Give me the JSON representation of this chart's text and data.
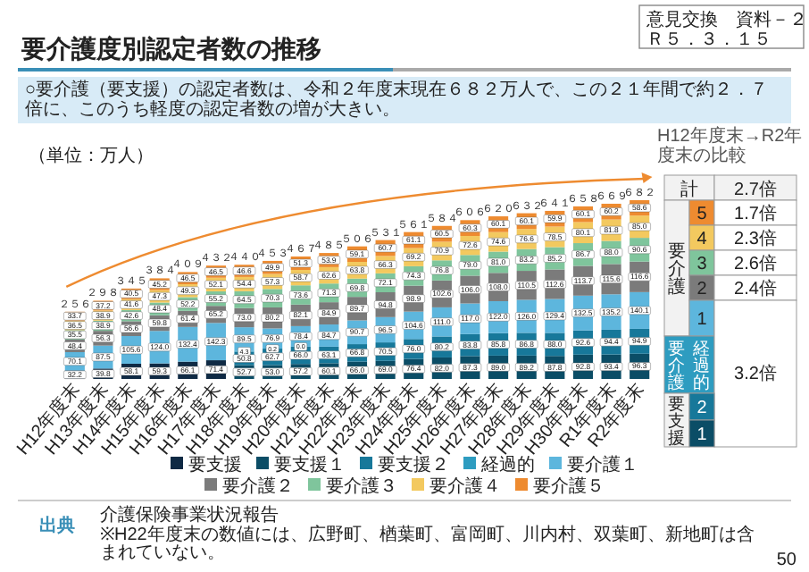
{
  "chart_data": {
    "type": "bar",
    "stacked": true,
    "data_labels": true,
    "legend": "bottom",
    "title": "要介護度別認定者数の推移",
    "subtitle": "○要介護（要支援）の認定者数は、令和２年度末現在６８２万人で、この２１年間で約２．７倍に、このうち軽度の認定者数の増が大きい。",
    "ylabel": "（単位：万人）",
    "categories": [
      "H12年度末",
      "H13年度末",
      "H14年度末",
      "H15年度末",
      "H16年度末",
      "H17年度末",
      "H18年度末",
      "H19年度末",
      "H20年度末",
      "H21年度末",
      "H22年度末",
      "H23年度末",
      "H24年度末",
      "H25年度末",
      "H26年度末",
      "H27年度末",
      "H28年度末",
      "H29年度末",
      "H30年度末",
      "R1年度末",
      "R2年度末"
    ],
    "series": [
      {
        "name": "要支援",
        "color": "#0f2a44",
        "values": [
          32.2,
          39.8,
          58.1,
          59.3,
          66.1,
          71.4,
          null,
          null,
          null,
          null,
          null,
          null,
          null,
          null,
          null,
          null,
          null,
          null,
          null,
          null,
          null
        ],
        "value_labels": [
          "32.2",
          "39.8",
          "58.1",
          "59.3",
          "66.1",
          "71.4",
          null,
          null,
          null,
          null,
          null,
          null,
          null,
          null,
          null,
          null,
          null,
          null,
          null,
          null,
          null
        ]
      },
      {
        "name": "要支援１",
        "color": "#0b4d66",
        "values": [
          null,
          null,
          null,
          null,
          null,
          null,
          52.7,
          53.0,
          57.2,
          60.1,
          66.0,
          69.0,
          76.4,
          82.0,
          87.3,
          89.0,
          89.2,
          87.8,
          92.8,
          93.4,
          96.3
        ],
        "value_labels": [
          null,
          null,
          null,
          null,
          null,
          null,
          "52.7",
          "53.0",
          "57.2",
          "60.1",
          "66.0",
          "69.0",
          "76.4",
          "82.0",
          "87.3",
          "89.0",
          "89.2",
          "87.8",
          "92.8",
          "93.4",
          "96.3"
        ]
      },
      {
        "name": "要支援２",
        "color": "#17789a",
        "values": [
          null,
          null,
          null,
          null,
          null,
          null,
          50.8,
          62.7,
          66.0,
          63.1,
          66.8,
          70.5,
          76.0,
          80.2,
          83.8,
          85.8,
          86.8,
          88.0,
          92.6,
          94.4,
          94.9
        ],
        "value_labels": [
          null,
          null,
          null,
          null,
          null,
          null,
          "50.8",
          "62.7",
          "66.0",
          "63.1",
          "66.8",
          "70.5",
          "76.0",
          "80.2",
          "83.8",
          "85.8",
          "86.8",
          "88.0",
          "92.6",
          "94.4",
          "94.9"
        ]
      },
      {
        "name": "経過的",
        "color": "#2e9cc0",
        "values": [
          null,
          null,
          null,
          null,
          null,
          null,
          4.3,
          0.2,
          0.0,
          null,
          null,
          null,
          null,
          null,
          null,
          null,
          null,
          null,
          null,
          null,
          null
        ],
        "value_labels": [
          null,
          null,
          null,
          null,
          null,
          null,
          "4.3",
          "0.2",
          "0.0",
          null,
          null,
          null,
          null,
          null,
          null,
          null,
          null,
          null,
          null,
          null,
          null
        ]
      },
      {
        "name": "要介護１",
        "color": "#5db6dd",
        "values": [
          70.1,
          87.5,
          105.6,
          124.0,
          132.4,
          142.3,
          89.5,
          76.9,
          78.4,
          84.7,
          90.7,
          96.5,
          104.6,
          111.0,
          117.0,
          122.0,
          126.0,
          129.4,
          132.5,
          135.2,
          140.1
        ],
        "value_labels": [
          "70.1",
          "87.5",
          "105.6",
          "124.0",
          "132.4",
          "142.3",
          "89.5",
          "76.9",
          "78.4",
          "84.7",
          "90.7",
          "96.5",
          "104.6",
          "111.0",
          "117.0",
          "122.0",
          "126.0",
          "129.4",
          "132.5",
          "135.2",
          "140.1"
        ]
      },
      {
        "name": "要介護２",
        "color": "#7b7b7b",
        "values": [
          48.4,
          56.3,
          56.6,
          59.8,
          61.4,
          65.2,
          73.0,
          80.2,
          82.1,
          84.9,
          89.7,
          94.8,
          98.9,
          102.6,
          106.0,
          108.0,
          110.5,
          112.6,
          113.7,
          115.6,
          116.6
        ],
        "value_labels": [
          "48.4",
          "56.3",
          "56.6",
          "59.8",
          "61.4",
          "65.2",
          "73.0",
          "80.2",
          "82.1",
          "84.9",
          "89.7",
          "94.8",
          "98.9",
          "102.6",
          "106.0",
          "108.0",
          "110.5",
          "112.6",
          "113.7",
          "115.6",
          "116.6"
        ]
      },
      {
        "name": "要介護３",
        "color": "#7fc59c",
        "values": [
          35.5,
          38.9,
          42.6,
          48.4,
          52.2,
          55.2,
          64.5,
          70.3,
          73.6,
          71.3,
          69.8,
          72.1,
          74.3,
          76.8,
          79.0,
          81.0,
          83.2,
          85.2,
          86.7,
          88.0,
          90.6
        ],
        "value_labels": [
          "35.5",
          "38.9",
          "42.6",
          "48.4",
          "52.2",
          "55.2",
          "64.5",
          "70.3",
          "73.6",
          "71.3",
          "69.8",
          "72.1",
          "74.3",
          "76.8",
          "79.0",
          "81.0",
          "83.2",
          "85.2",
          "86.7",
          "88.0",
          "90.6"
        ]
      },
      {
        "name": "要介護４",
        "color": "#f3c95f",
        "values": [
          36.5,
          38.9,
          41.6,
          47.3,
          49.3,
          52.1,
          54.4,
          57.3,
          58.7,
          62.6,
          63.8,
          66.3,
          69.2,
          70.9,
          72.6,
          74.6,
          76.6,
          78.5,
          80.1,
          81.8,
          85.0
        ],
        "value_labels": [
          "36.5",
          "38.9",
          "41.6",
          "47.3",
          "49.3",
          "52.1",
          "54.4",
          "57.3",
          "58.7",
          "62.6",
          "63.8",
          "66.3",
          "69.2",
          "70.9",
          "72.6",
          "74.6",
          "76.6",
          "78.5",
          "80.1",
          "81.8",
          "85.0"
        ]
      },
      {
        "name": "要介護５",
        "color": "#ee8b30",
        "values": [
          33.7,
          37.2,
          40.5,
          45.2,
          46.5,
          46.5,
          46.6,
          49.9,
          51.3,
          53.9,
          59.1,
          60.7,
          61.1,
          60.5,
          60.3,
          60.1,
          60.1,
          59.9,
          60.1,
          60.2,
          58.6
        ],
        "value_labels": [
          "33.7",
          "37.2",
          "40.5",
          "45.2",
          "46.5",
          "46.5",
          "46.6",
          "49.9",
          "51.3",
          "53.9",
          "59.1",
          "60.7",
          "61.1",
          "60.5",
          "60.3",
          "60.1",
          "60.1",
          "59.9",
          "60.1",
          "60.2",
          "58.6"
        ]
      }
    ],
    "totals": [
      "２５６",
      "２９８",
      "３４５",
      "３８４",
      "４０９",
      "４３２",
      "４４０",
      "４５３",
      "４６７",
      "４８５",
      "５０６",
      "５３１",
      "５６１",
      "５８４",
      "６０６",
      "６２０",
      "６３２",
      "６４１",
      "６５８",
      "６６９",
      "６８２"
    ],
    "annotations": [
      "意見交換　資料－２",
      "Ｒ５．３．１５",
      "H12年度末→R2年度末の比較",
      "計",
      "2.7倍",
      "要介護",
      "5",
      "4",
      "3",
      "2",
      "1",
      "1.7倍",
      "2.3倍",
      "2.6倍",
      "2.4倍",
      "要介護",
      "経過的",
      "3.2倍",
      "要支援",
      "2",
      "1",
      "出典",
      "介護保険事業状況報告",
      "※H22年度末の数値には、広野町、楢葉町、富岡町、川内村、双葉町、新地町は含まれていない。",
      "50"
    ]
  }
}
